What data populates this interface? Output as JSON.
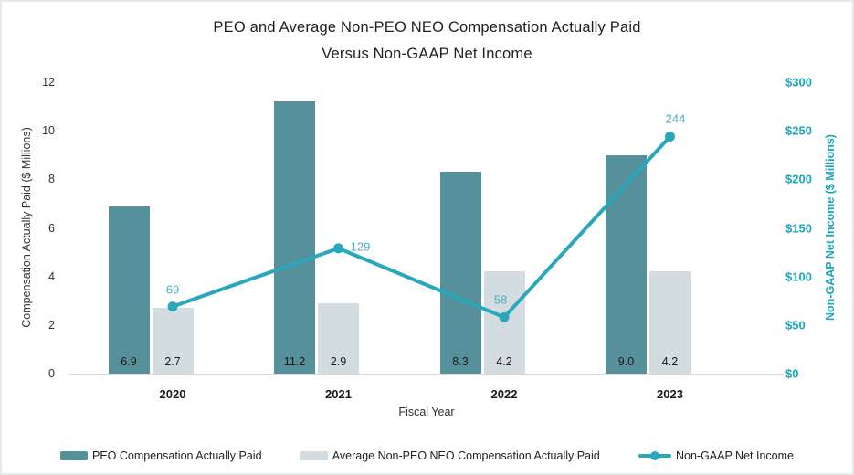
{
  "chart_data": {
    "type": "combo-bar-line",
    "title": [
      "PEO and Average Non-PEO NEO Compensation Actually Paid",
      "Versus Non-GAAP Net Income"
    ],
    "categories": [
      "2020",
      "2021",
      "2022",
      "2023"
    ],
    "series": [
      {
        "name": "PEO Compensation Actually Paid",
        "type": "bar",
        "axis": "left",
        "values": [
          6.9,
          11.2,
          8.3,
          9.0
        ],
        "labels": [
          "6.9",
          "11.2",
          "8.3",
          "9.0"
        ],
        "color": "#55909b"
      },
      {
        "name": "Average Non-PEO NEO Compensation Actually Paid",
        "type": "bar",
        "axis": "left",
        "values": [
          2.7,
          2.9,
          4.2,
          4.2
        ],
        "labels": [
          "2.7",
          "2.9",
          "4.2",
          "4.2"
        ],
        "color": "#d3dde1"
      },
      {
        "name": "Non-GAAP Net Income",
        "type": "line",
        "axis": "right",
        "values": [
          69,
          129,
          58,
          244
        ],
        "labels": [
          "69",
          "129",
          "58",
          "244"
        ],
        "color": "#29a8bd",
        "label_color": "#4eaec3"
      }
    ],
    "xlabel": "Fiscal Year",
    "left_axis": {
      "label": "Compensation Actually Paid ($ Millions)",
      "ticks": [
        "0",
        "2",
        "4",
        "6",
        "8",
        "10",
        "12"
      ],
      "tick_values": [
        0,
        2,
        4,
        6,
        8,
        10,
        12
      ],
      "min": 0,
      "max": 12
    },
    "right_axis": {
      "label": "Non-GAAP Net Income ($ Millions)",
      "ticks": [
        "$0",
        "$50",
        "$100",
        "$150",
        "$200",
        "$250",
        "$300"
      ],
      "tick_values": [
        0,
        50,
        100,
        150,
        200,
        250,
        300
      ],
      "min": 0,
      "max": 300,
      "color": "#1ca5bb"
    },
    "legend_position": "bottom",
    "grid": false
  }
}
